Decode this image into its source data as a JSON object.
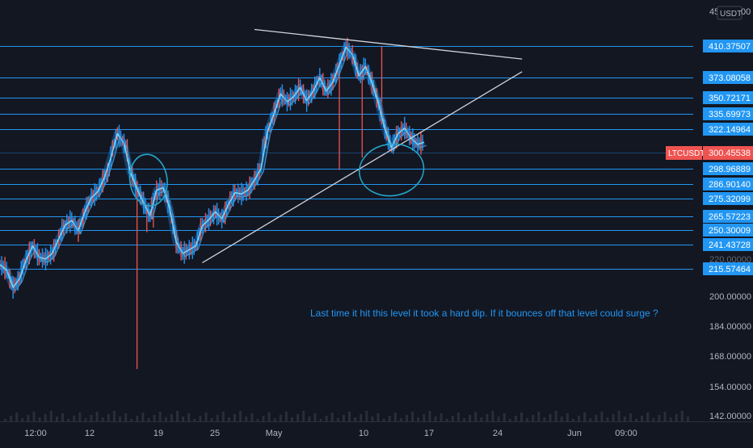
{
  "chart_data": {
    "type": "candlestick",
    "symbol": "LTCUSDT",
    "currency": "USDT",
    "last_price": 300.45538,
    "last_price_label": "300.45538",
    "axis_top_label": "45",
    "axis_top_label_tail": "00",
    "x_ticks": [
      "12:00",
      "12",
      "19",
      "25",
      "May",
      "10",
      "17",
      "24",
      "Jun",
      "09:00"
    ],
    "y_ticks": [
      {
        "value": 200,
        "label": "200.00000"
      },
      {
        "value": 184,
        "label": "184.00000"
      },
      {
        "value": 168,
        "label": "168.00000"
      },
      {
        "value": 154,
        "label": "154.00000"
      },
      {
        "value": 142,
        "label": "142.00000"
      }
    ],
    "horizontal_levels": [
      {
        "value": 410.37507,
        "label": "410.37507"
      },
      {
        "value": 373.08058,
        "label": "373.08058"
      },
      {
        "value": 350.72171,
        "label": "350.72171"
      },
      {
        "value": 335.69973,
        "label": "335.69973"
      },
      {
        "value": 322.14964,
        "label": "322.14964"
      },
      {
        "value": 298.96889,
        "label": "298.96889"
      },
      {
        "value": 286.9014,
        "label": "286.90140"
      },
      {
        "value": 275.32099,
        "label": "275.32099"
      },
      {
        "value": 265.57223,
        "label": "265.57223"
      },
      {
        "value": 250.30009,
        "label": "250.30009"
      },
      {
        "value": 241.43728,
        "label": "241.43728"
      },
      {
        "value": 215.57464,
        "label": "215.57464"
      }
    ],
    "hidden_label_fragment": "220.00000",
    "price_path": [
      [
        0,
        220
      ],
      [
        0.02,
        215
      ],
      [
        0.04,
        205
      ],
      [
        0.06,
        210
      ],
      [
        0.08,
        225
      ],
      [
        0.1,
        240
      ],
      [
        0.12,
        228
      ],
      [
        0.14,
        226
      ],
      [
        0.16,
        232
      ],
      [
        0.18,
        245
      ],
      [
        0.2,
        256
      ],
      [
        0.22,
        261
      ],
      [
        0.24,
        250
      ],
      [
        0.26,
        268
      ],
      [
        0.28,
        276
      ],
      [
        0.3,
        281
      ],
      [
        0.32,
        292
      ],
      [
        0.34,
        300
      ],
      [
        0.36,
        318
      ],
      [
        0.38,
        309
      ],
      [
        0.4,
        296
      ],
      [
        0.42,
        283
      ],
      [
        0.44,
        273
      ],
      [
        0.46,
        266
      ],
      [
        0.48,
        282
      ],
      [
        0.5,
        284
      ],
      [
        0.52,
        270
      ],
      [
        0.54,
        243
      ],
      [
        0.56,
        232
      ],
      [
        0.58,
        236
      ],
      [
        0.6,
        240
      ],
      [
        0.62,
        255
      ],
      [
        0.64,
        262
      ],
      [
        0.66,
        268
      ],
      [
        0.68,
        263
      ],
      [
        0.7,
        272
      ],
      [
        0.72,
        280
      ],
      [
        0.74,
        279
      ],
      [
        0.76,
        282
      ],
      [
        0.78,
        290
      ],
      [
        0.8,
        299
      ],
      [
        0.82,
        320
      ],
      [
        0.84,
        336
      ],
      [
        0.86,
        355
      ],
      [
        0.88,
        347
      ],
      [
        0.9,
        352
      ],
      [
        0.92,
        362
      ],
      [
        0.94,
        348
      ],
      [
        0.96,
        358
      ],
      [
        0.98,
        373
      ],
      [
        1.0,
        358
      ],
      [
        1.02,
        368
      ],
      [
        1.04,
        388
      ],
      [
        1.06,
        409
      ],
      [
        1.08,
        400
      ],
      [
        1.1,
        375
      ],
      [
        1.12,
        386
      ],
      [
        1.14,
        367
      ],
      [
        1.16,
        345
      ],
      [
        1.18,
        322
      ],
      [
        1.2,
        305
      ],
      [
        1.22,
        318
      ],
      [
        1.24,
        323
      ],
      [
        1.26,
        314
      ],
      [
        1.28,
        308
      ],
      [
        1.3,
        310
      ]
    ],
    "spikes": [
      {
        "t": 0.42,
        "low": 162
      },
      {
        "t": 0.47,
        "low": 253
      },
      {
        "t": 0.56,
        "low": 230
      },
      {
        "t": 1.11,
        "low": 300
      },
      {
        "t": 1.17,
        "high": 410
      },
      {
        "t": 0.45,
        "low": 249
      },
      {
        "t": 1.04,
        "low": 298
      }
    ],
    "trendlines": [
      {
        "name": "upper-resistance",
        "from": [
          0.78,
          430
        ],
        "to": [
          1.6,
          395
        ]
      },
      {
        "name": "lower-support",
        "from": [
          0.62,
          222
        ],
        "to": [
          1.6,
          380
        ]
      }
    ],
    "circles": [
      {
        "name": "left-circle",
        "cx": 0.455,
        "cy": 290,
        "rx": 23,
        "ry": 32
      },
      {
        "name": "right-circle",
        "cx": 1.2,
        "cy": 298,
        "rx": 40,
        "ry": 32
      }
    ],
    "annotation": "Last time it hit this level it took a hard dip. If it bounces off that level could surge ?",
    "colors": {
      "background": "#131722",
      "level_line": "#2196f3",
      "level_label_bg": "#2196f3",
      "trendline": "#d1d4dc",
      "circle": "#26a6c9",
      "candle_main": "#2196f3",
      "candle_bear": "#ef5350",
      "price_label_bg": "#ef5350",
      "axis_text": "#b2b5be",
      "annotation_text": "#2196f3"
    }
  }
}
